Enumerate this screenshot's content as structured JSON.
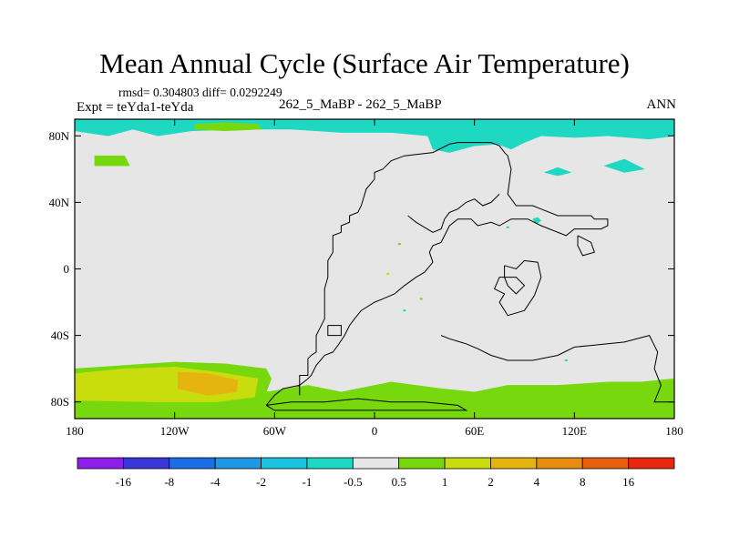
{
  "header": {
    "title": "Mean Annual Cycle (Surface Air Temperature)",
    "stats": "rmsd= 0.304803 diff= 0.0292249",
    "experiment": "Expt = teYda1-teYda",
    "case": "262_5_MaBP - 262_5_MaBP",
    "season": "ANN"
  },
  "chart_data": {
    "type": "heatmap",
    "title": "Mean Annual Cycle (Surface Air Temperature)",
    "x_ticks": [
      {
        "value": -180,
        "label": "180"
      },
      {
        "value": -120,
        "label": "120W"
      },
      {
        "value": -60,
        "label": "60W"
      },
      {
        "value": 0,
        "label": "0"
      },
      {
        "value": 60,
        "label": "60E"
      },
      {
        "value": 120,
        "label": "120E"
      },
      {
        "value": 180,
        "label": "180"
      }
    ],
    "y_ticks": [
      {
        "value": 80,
        "label": "80N"
      },
      {
        "value": 40,
        "label": "40N"
      },
      {
        "value": 0,
        "label": "0"
      },
      {
        "value": -40,
        "label": "40S"
      },
      {
        "value": -80,
        "label": "80S"
      }
    ],
    "xlim": [
      -180,
      180
    ],
    "ylim": [
      -90,
      90
    ],
    "background_color": "#e6e6e6",
    "colorbar": {
      "bins": [
        "#8f1eea",
        "#3a36d8",
        "#1a6ee4",
        "#1e98e4",
        "#1cc2e2",
        "#1ed8c2",
        "#e6e6e6",
        "#78d80e",
        "#c8dc0e",
        "#e6b40e",
        "#e68c0e",
        "#e6600e",
        "#e6280e"
      ],
      "labels": [
        "-16",
        "-8",
        "-4",
        "-2",
        "-1",
        "-0.5",
        "0.5",
        "1",
        "2",
        "4",
        "8",
        "16"
      ]
    },
    "regions": [
      {
        "level": "-1",
        "color": "#1ed8c2",
        "lonlat": [
          [
            -180,
            90
          ],
          [
            180,
            90
          ],
          [
            180,
            80
          ],
          [
            165,
            78
          ],
          [
            140,
            80
          ],
          [
            120,
            79
          ],
          [
            100,
            80
          ],
          [
            90,
            76
          ],
          [
            82,
            72
          ],
          [
            74,
            75
          ],
          [
            60,
            74
          ],
          [
            45,
            70
          ],
          [
            35,
            72
          ],
          [
            32,
            80
          ],
          [
            10,
            82
          ],
          [
            -20,
            82
          ],
          [
            -50,
            84
          ],
          [
            -80,
            84
          ],
          [
            -110,
            83
          ],
          [
            -130,
            80
          ],
          [
            -145,
            84
          ],
          [
            -160,
            80
          ],
          [
            -180,
            83
          ]
        ]
      },
      {
        "level": "-1",
        "color": "#1ed8c2",
        "lonlat": [
          [
            138,
            62
          ],
          [
            150,
            66
          ],
          [
            162,
            60
          ],
          [
            150,
            58
          ]
        ]
      },
      {
        "level": "-1",
        "color": "#1ed8c2",
        "lonlat": [
          [
            102,
            58
          ],
          [
            110,
            61
          ],
          [
            118,
            58
          ],
          [
            110,
            56
          ]
        ]
      },
      {
        "level": "-1",
        "color": "#1ed8c2",
        "lonlat": [
          [
            95,
            30
          ],
          [
            98,
            31
          ],
          [
            100,
            29
          ],
          [
            97,
            27
          ]
        ]
      },
      {
        "level": "1",
        "color": "#78d80e",
        "lonlat": [
          [
            -168,
            68
          ],
          [
            -150,
            68
          ],
          [
            -147,
            62
          ],
          [
            -168,
            62
          ]
        ]
      },
      {
        "level": "1",
        "color": "#78d80e",
        "lonlat": [
          [
            -108,
            87
          ],
          [
            -90,
            88
          ],
          [
            -70,
            87
          ],
          [
            -68,
            84
          ],
          [
            -90,
            83
          ],
          [
            -108,
            84
          ]
        ]
      },
      {
        "level": "1",
        "color": "#78d80e",
        "lonlat": [
          [
            -180,
            -60
          ],
          [
            -150,
            -58
          ],
          [
            -120,
            -56
          ],
          [
            -90,
            -57
          ],
          [
            -65,
            -60
          ],
          [
            -62,
            -66
          ],
          [
            -65,
            -74
          ],
          [
            -40,
            -70
          ],
          [
            -20,
            -74
          ],
          [
            10,
            -68
          ],
          [
            40,
            -72
          ],
          [
            60,
            -74
          ],
          [
            80,
            -70
          ],
          [
            110,
            -70
          ],
          [
            140,
            -68
          ],
          [
            160,
            -68
          ],
          [
            180,
            -66
          ],
          [
            180,
            -90
          ],
          [
            -180,
            -90
          ]
        ]
      },
      {
        "level": "2",
        "color": "#c8dc0e",
        "lonlat": [
          [
            -180,
            -63
          ],
          [
            -150,
            -60
          ],
          [
            -120,
            -59
          ],
          [
            -95,
            -62
          ],
          [
            -70,
            -66
          ],
          [
            -72,
            -77
          ],
          [
            -95,
            -80
          ],
          [
            -130,
            -80
          ],
          [
            -180,
            -79
          ]
        ]
      },
      {
        "level": "4",
        "color": "#e6b40e",
        "lonlat": [
          [
            -118,
            -62
          ],
          [
            -100,
            -63
          ],
          [
            -82,
            -67
          ],
          [
            -83,
            -74
          ],
          [
            -100,
            -76
          ],
          [
            -118,
            -72
          ]
        ]
      }
    ],
    "coastline": [
      {
        "name": "west-land",
        "lonlat": [
          [
            -45,
            -76
          ],
          [
            -45,
            -64
          ],
          [
            -40,
            -64
          ],
          [
            -40,
            -54
          ],
          [
            -38,
            -52
          ],
          [
            -35,
            -50
          ],
          [
            -35,
            -40
          ],
          [
            -33,
            -36
          ],
          [
            -30,
            -30
          ],
          [
            -30,
            -12
          ],
          [
            -28,
            -5
          ],
          [
            -28,
            5
          ],
          [
            -25,
            10
          ],
          [
            -25,
            20
          ],
          [
            -20,
            22
          ],
          [
            -20,
            26
          ],
          [
            -15,
            28
          ],
          [
            -15,
            32
          ],
          [
            -10,
            34
          ],
          [
            -8,
            38
          ],
          [
            -5,
            48
          ],
          [
            0,
            54
          ],
          [
            0,
            58
          ],
          [
            5,
            60
          ],
          [
            10,
            65
          ],
          [
            18,
            68
          ],
          [
            35,
            70
          ],
          [
            45,
            75
          ],
          [
            50,
            76
          ],
          [
            60,
            76
          ],
          [
            70,
            76
          ],
          [
            75,
            74
          ],
          [
            78,
            70
          ],
          [
            80,
            68
          ],
          [
            82,
            60
          ],
          [
            80,
            45
          ],
          [
            85,
            38
          ],
          [
            95,
            38
          ],
          [
            100,
            36
          ],
          [
            110,
            32
          ],
          [
            130,
            32
          ],
          [
            132,
            30
          ],
          [
            140,
            30
          ],
          [
            140,
            26
          ],
          [
            136,
            24
          ],
          [
            120,
            24
          ],
          [
            115,
            20
          ],
          [
            105,
            24
          ],
          [
            100,
            26
          ],
          [
            92,
            30
          ],
          [
            82,
            30
          ],
          [
            75,
            26
          ],
          [
            70,
            28
          ],
          [
            62,
            26
          ],
          [
            58,
            30
          ],
          [
            50,
            30
          ],
          [
            45,
            26
          ],
          [
            42,
            20
          ],
          [
            40,
            16
          ],
          [
            35,
            14
          ],
          [
            33,
            10
          ],
          [
            35,
            4
          ],
          [
            30,
            -2
          ],
          [
            25,
            -5
          ],
          [
            18,
            -10
          ],
          [
            12,
            -15
          ],
          [
            5,
            -18
          ],
          [
            0,
            -20
          ],
          [
            -8,
            -25
          ],
          [
            -12,
            -30
          ],
          [
            -15,
            -34
          ],
          [
            -18,
            -40
          ],
          [
            -22,
            -46
          ],
          [
            -25,
            -50
          ],
          [
            -30,
            -52
          ],
          [
            -35,
            -58
          ],
          [
            -38,
            -64
          ],
          [
            -40,
            -66
          ],
          [
            -45,
            -70
          ],
          [
            -55,
            -72
          ],
          [
            -60,
            -76
          ],
          [
            -65,
            -82
          ]
        ]
      },
      {
        "name": "east-land",
        "lonlat": [
          [
            20,
            32
          ],
          [
            25,
            28
          ],
          [
            30,
            25
          ],
          [
            35,
            22
          ],
          [
            40,
            24
          ],
          [
            42,
            30
          ],
          [
            45,
            34
          ],
          [
            50,
            36
          ],
          [
            55,
            40
          ],
          [
            60,
            42
          ],
          [
            65,
            38
          ],
          [
            70,
            40
          ],
          [
            75,
            45
          ]
        ]
      },
      {
        "name": "inner-lake",
        "lonlat": [
          [
            78,
            2
          ],
          [
            85,
            0
          ],
          [
            90,
            5
          ],
          [
            98,
            4
          ],
          [
            100,
            -5
          ],
          [
            96,
            -16
          ],
          [
            90,
            -25
          ],
          [
            80,
            -28
          ],
          [
            75,
            -20
          ],
          [
            78,
            -15
          ],
          [
            72,
            -12
          ],
          [
            75,
            -5
          ],
          [
            85,
            -5
          ],
          [
            90,
            -10
          ],
          [
            85,
            -15
          ],
          [
            80,
            -10
          ],
          [
            78,
            -5
          ],
          [
            78,
            2
          ]
        ]
      },
      {
        "name": "south-coast",
        "lonlat": [
          [
            40,
            -40
          ],
          [
            45,
            -42
          ],
          [
            55,
            -45
          ],
          [
            62,
            -48
          ],
          [
            70,
            -52
          ],
          [
            80,
            -55
          ],
          [
            95,
            -55
          ],
          [
            110,
            -52
          ],
          [
            120,
            -47
          ],
          [
            130,
            -46
          ],
          [
            140,
            -45
          ],
          [
            150,
            -44
          ],
          [
            165,
            -40
          ],
          [
            170,
            -50
          ],
          [
            168,
            -60
          ],
          [
            172,
            -70
          ],
          [
            168,
            -80
          ],
          [
            180,
            -80
          ]
        ]
      },
      {
        "name": "south-polar",
        "lonlat": [
          [
            -65,
            -82
          ],
          [
            -50,
            -80
          ],
          [
            -30,
            -80
          ],
          [
            -10,
            -78
          ],
          [
            10,
            -80
          ],
          [
            30,
            -80
          ],
          [
            50,
            -82
          ],
          [
            55,
            -85
          ],
          [
            -60,
            -85
          ],
          [
            -65,
            -82
          ]
        ]
      },
      {
        "name": "lake-small",
        "lonlat": [
          [
            -28,
            -34
          ],
          [
            -20,
            -34
          ],
          [
            -20,
            -40
          ],
          [
            -28,
            -40
          ],
          [
            -28,
            -34
          ]
        ]
      },
      {
        "name": "island-east",
        "lonlat": [
          [
            122,
            20
          ],
          [
            130,
            16
          ],
          [
            132,
            10
          ],
          [
            125,
            8
          ],
          [
            122,
            14
          ],
          [
            122,
            20
          ]
        ]
      }
    ],
    "spots": [
      {
        "lon": 15,
        "lat": 15,
        "color": "#78d80e"
      },
      {
        "lon": 8,
        "lat": -3,
        "color": "#c8dc0e"
      },
      {
        "lon": 28,
        "lat": -18,
        "color": "#78d80e"
      },
      {
        "lon": 80,
        "lat": 25,
        "color": "#1ed8c2"
      },
      {
        "lon": 18,
        "lat": -25,
        "color": "#1ed8c2"
      },
      {
        "lon": 115,
        "lat": -55,
        "color": "#1ed8c2"
      }
    ]
  }
}
